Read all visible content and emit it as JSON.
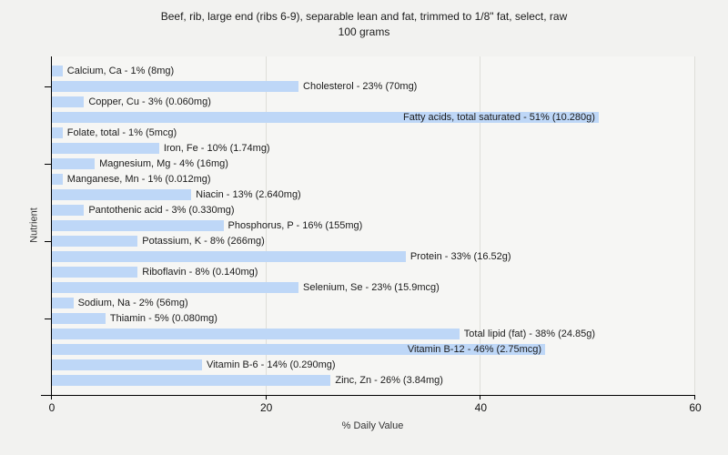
{
  "title": {
    "line1": "Beef, rib, large end (ribs 6-9), separable lean and fat, trimmed to 1/8\" fat, select, raw",
    "line2": "100 grams"
  },
  "chart_data": {
    "type": "bar",
    "orientation": "horizontal",
    "title": "Beef, rib, large end (ribs 6-9), separable lean and fat, trimmed to 1/8\" fat, select, raw",
    "subtitle": "100 grams",
    "xlabel": "% Daily Value",
    "ylabel": "Nutrient",
    "xlim": [
      0,
      60
    ],
    "xticks": [
      0,
      20,
      40,
      60
    ],
    "grid": "vertical-lines-at-xticks",
    "legend": "none",
    "bar_color": "#bed7f7",
    "categories": [
      "Calcium, Ca",
      "Cholesterol",
      "Copper, Cu",
      "Fatty acids, total saturated",
      "Folate, total",
      "Iron, Fe",
      "Magnesium, Mg",
      "Manganese, Mn",
      "Niacin",
      "Pantothenic acid",
      "Phosphorus, P",
      "Potassium, K",
      "Protein",
      "Riboflavin",
      "Selenium, Se",
      "Sodium, Na",
      "Thiamin",
      "Total lipid (fat)",
      "Vitamin B-12",
      "Vitamin B-6",
      "Zinc, Zn"
    ],
    "values": [
      1,
      23,
      3,
      51,
      1,
      10,
      4,
      1,
      13,
      3,
      16,
      8,
      33,
      8,
      23,
      2,
      5,
      38,
      46,
      14,
      26
    ],
    "amounts": [
      "8mg",
      "70mg",
      "0.060mg",
      "10.280g",
      "5mcg",
      "1.74mg",
      "16mg",
      "0.012mg",
      "2.640mg",
      "0.330mg",
      "155mg",
      "266mg",
      "16.52g",
      "0.140mg",
      "15.9mcg",
      "56mg",
      "0.080mg",
      "24.85g",
      "2.75mcg",
      "0.290mg",
      "3.84mg"
    ],
    "bar_labels": [
      "Calcium, Ca - 1% (8mg)",
      "Cholesterol - 23% (70mg)",
      "Copper, Cu - 3% (0.060mg)",
      "Fatty acids, total saturated - 51% (10.280g)",
      "Folate, total - 1% (5mcg)",
      "Iron, Fe - 10% (1.74mg)",
      "Magnesium, Mg - 4% (16mg)",
      "Manganese, Mn - 1% (0.012mg)",
      "Niacin - 13% (2.640mg)",
      "Pantothenic acid - 3% (0.330mg)",
      "Phosphorus, P - 16% (155mg)",
      "Potassium, K - 8% (266mg)",
      "Protein - 33% (16.52g)",
      "Riboflavin - 8% (0.140mg)",
      "Selenium, Se - 23% (15.9mcg)",
      "Sodium, Na - 2% (56mg)",
      "Thiamin - 5% (0.080mg)",
      "Total lipid (fat) - 38% (24.85g)",
      "Vitamin B-12 - 46% (2.75mcg)",
      "Vitamin B-6 - 14% (0.290mg)",
      "Zinc, Zn - 26% (3.84mg)"
    ],
    "labels_inside_bar_indices": [
      3,
      18
    ],
    "y_axis_major_tick_rows": [
      1,
      6,
      11,
      16
    ]
  }
}
